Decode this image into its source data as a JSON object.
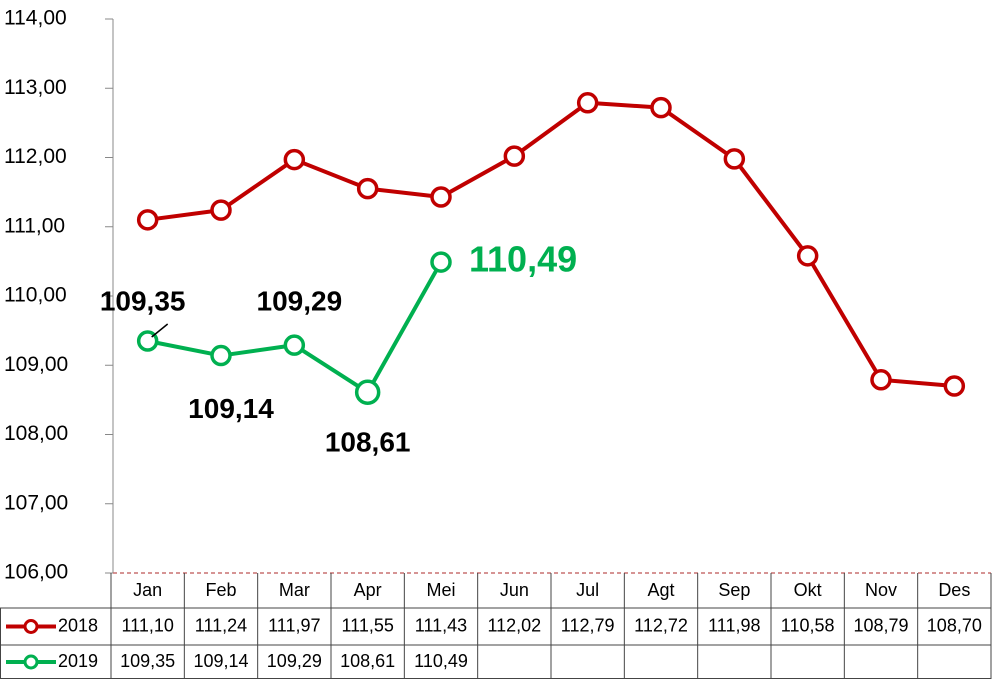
{
  "chart_data": {
    "type": "line",
    "categories": [
      "Jan",
      "Feb",
      "Mar",
      "Apr",
      "Mei",
      "Jun",
      "Jul",
      "Agt",
      "Sep",
      "Okt",
      "Nov",
      "Des"
    ],
    "series": [
      {
        "name": "2018",
        "color": "#c00000",
        "values": [
          111.1,
          111.24,
          111.97,
          111.55,
          111.43,
          112.02,
          112.79,
          112.72,
          111.98,
          110.58,
          108.79,
          108.7
        ],
        "value_labels": [
          "111,10",
          "111,24",
          "111,97",
          "111,55",
          "111,43",
          "112,02",
          "112,79",
          "112,72",
          "111,98",
          "110,58",
          "108,79",
          "108,70"
        ]
      },
      {
        "name": "2019",
        "color": "#00b050",
        "values": [
          109.35,
          109.14,
          109.29,
          108.61,
          110.49,
          null,
          null,
          null,
          null,
          null,
          null,
          null
        ],
        "value_labels": [
          "109,35",
          "109,14",
          "109,29",
          "108,61",
          "110,49",
          null,
          null,
          null,
          null,
          null,
          null,
          null
        ]
      }
    ],
    "ylim": [
      106,
      114
    ],
    "yticks": [
      {
        "value": 106,
        "label": "106,00"
      },
      {
        "value": 107,
        "label": "107,00"
      },
      {
        "value": 108,
        "label": "108,00"
      },
      {
        "value": 109,
        "label": "109,00"
      },
      {
        "value": 110,
        "label": "110,00"
      },
      {
        "value": 111,
        "label": "111,00"
      },
      {
        "value": 112,
        "label": "112,00"
      },
      {
        "value": 113,
        "label": "113,00"
      },
      {
        "value": 114,
        "label": "114,00"
      }
    ]
  }
}
